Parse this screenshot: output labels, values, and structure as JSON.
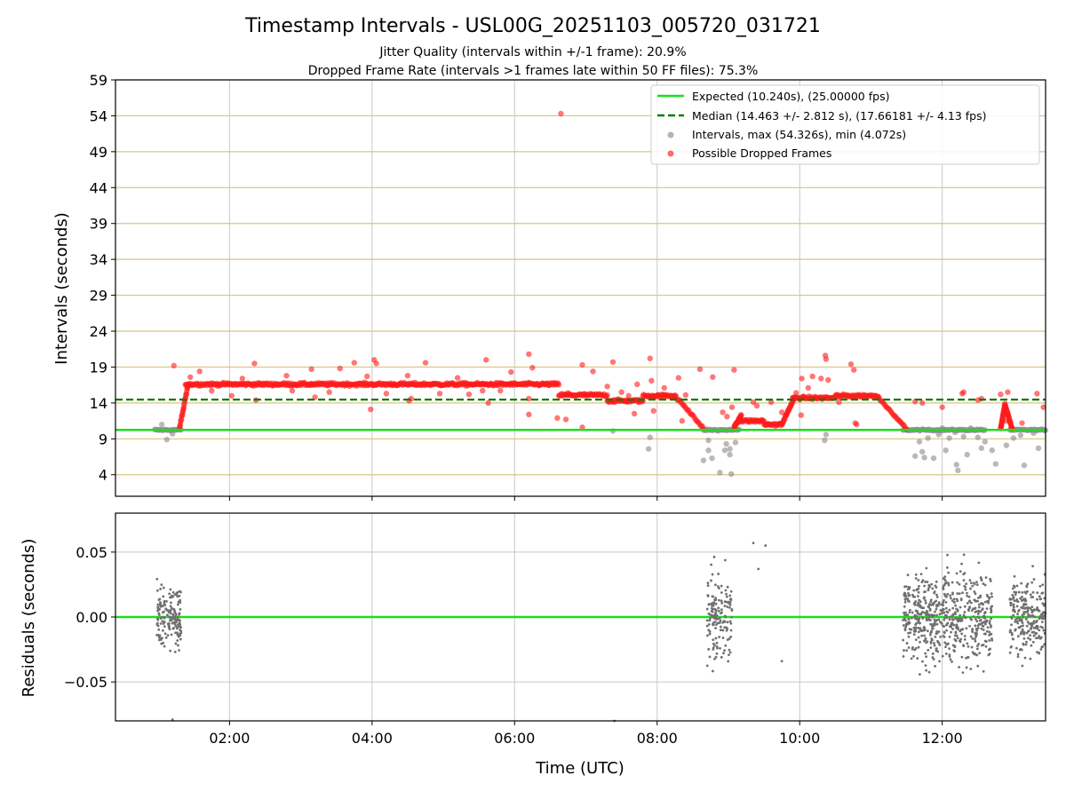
{
  "figure": {
    "title": "Timestamp Intervals - USL00G_20251103_005720_031721",
    "subtitle_1": "Jitter Quality (intervals within +/-1 frame): 20.9%",
    "subtitle_2": "Dropped Frame Rate (intervals >1 frames late within 50 FF files): 75.3%"
  },
  "colors": {
    "expected": "#18e018",
    "median": "#0a7a0a",
    "intervals": "#8a8a8a",
    "dropped": "#ff1a1a",
    "residuals": "#707070",
    "hgrid_top": "#d8c480",
    "grid": "#c8c8c8"
  },
  "chart_data": [
    {
      "type": "scatter",
      "ylabel": "Intervals (seconds)",
      "x_unit": "hours UTC",
      "xlim": [
        0.4,
        13.45
      ],
      "ylim": [
        1,
        59
      ],
      "ytick_values": [
        4,
        9,
        14,
        19,
        24,
        29,
        34,
        39,
        44,
        49,
        54,
        59
      ],
      "ytick_labels": [
        "4",
        "9",
        "14",
        "19",
        "24",
        "29",
        "34",
        "39",
        "44",
        "49",
        "54",
        "59"
      ],
      "xtick_values": [
        2,
        4,
        6,
        8,
        10,
        12
      ],
      "legend_position": "top-right",
      "lines": [
        {
          "name": "expected",
          "label": "Expected (10.240s), (25.00000 fps)",
          "y": 10.24,
          "style": "solid"
        },
        {
          "name": "median",
          "label": "Median (14.463 +/- 2.812 s), (17.66181 +/- 4.13 fps)",
          "y": 14.463,
          "style": "dashed"
        }
      ],
      "series": [
        {
          "name": "Intervals",
          "label": "Intervals, max (54.326s), min (4.072s)",
          "bands": [
            {
              "x0": 0.95,
              "x1": 1.32,
              "y": 10.24
            },
            {
              "x0": 8.65,
              "x1": 9.15,
              "y": 10.24
            },
            {
              "x0": 11.45,
              "x1": 12.6,
              "y": 10.24
            },
            {
              "x0": 12.95,
              "x1": 13.45,
              "y": 10.24
            }
          ],
          "points": [
            [
              1.12,
              8.9
            ],
            [
              1.2,
              9.7
            ],
            [
              1.05,
              11.0
            ],
            [
              7.38,
              10.1
            ],
            [
              7.9,
              9.2
            ],
            [
              7.88,
              7.6
            ],
            [
              8.65,
              6.0
            ],
            [
              8.72,
              8.8
            ],
            [
              8.72,
              7.4
            ],
            [
              8.77,
              6.3
            ],
            [
              8.88,
              4.3
            ],
            [
              8.95,
              7.4
            ],
            [
              8.97,
              8.3
            ],
            [
              9.02,
              6.8
            ],
            [
              9.04,
              4.1
            ],
            [
              9.02,
              7.6
            ],
            [
              9.1,
              8.5
            ],
            [
              10.35,
              8.8
            ],
            [
              10.37,
              9.6
            ],
            [
              11.62,
              6.6
            ],
            [
              11.68,
              8.6
            ],
            [
              11.72,
              7.2
            ],
            [
              11.75,
              6.4
            ],
            [
              11.8,
              9.1
            ],
            [
              11.88,
              6.3
            ],
            [
              11.95,
              9.6
            ],
            [
              12.0,
              10.5
            ],
            [
              12.05,
              7.4
            ],
            [
              12.1,
              9.1
            ],
            [
              12.18,
              9.9
            ],
            [
              12.2,
              5.4
            ],
            [
              12.22,
              4.6
            ],
            [
              12.3,
              9.3
            ],
            [
              12.4,
              10.5
            ],
            [
              12.55,
              7.7
            ],
            [
              12.6,
              8.6
            ],
            [
              12.7,
              7.4
            ],
            [
              12.75,
              5.5
            ],
            [
              12.9,
              8.1
            ],
            [
              13.0,
              9.1
            ],
            [
              13.1,
              9.5
            ],
            [
              13.15,
              5.3
            ],
            [
              13.28,
              9.8
            ],
            [
              13.35,
              7.7
            ],
            [
              12.5,
              9.2
            ],
            [
              12.35,
              6.8
            ]
          ]
        },
        {
          "name": "Possible Dropped Frames",
          "label": "Possible Dropped Frames",
          "bands": [
            {
              "x0": 1.38,
              "x1": 6.62,
              "y": 16.6
            },
            {
              "x0": 6.62,
              "x1": 7.3,
              "y": 15.1
            },
            {
              "x0": 7.3,
              "x1": 7.8,
              "y": 14.3
            },
            {
              "x0": 7.8,
              "x1": 8.25,
              "y": 15.0
            },
            {
              "x0": 9.15,
              "x1": 9.5,
              "y": 11.5
            },
            {
              "x0": 9.5,
              "x1": 9.75,
              "y": 11.0
            },
            {
              "x0": 9.9,
              "x1": 10.5,
              "y": 14.7
            },
            {
              "x0": 10.5,
              "x1": 11.1,
              "y": 15.0
            }
          ],
          "ramps": [
            {
              "x0": 1.3,
              "y0": 10.6,
              "x1": 1.42,
              "y1": 16.6
            },
            {
              "x0": 8.25,
              "y0": 15.0,
              "x1": 8.65,
              "y1": 10.5
            },
            {
              "x0": 9.08,
              "y0": 10.6,
              "x1": 9.18,
              "y1": 12.3
            },
            {
              "x0": 9.75,
              "y0": 11.0,
              "x1": 9.92,
              "y1": 14.6
            },
            {
              "x0": 11.1,
              "y0": 14.8,
              "x1": 11.5,
              "y1": 10.4
            },
            {
              "x0": 12.82,
              "y0": 10.4,
              "x1": 12.88,
              "y1": 13.8
            },
            {
              "x0": 12.88,
              "y0": 13.8,
              "x1": 12.98,
              "y1": 10.4
            }
          ],
          "points": [
            [
              6.65,
              54.3
            ],
            [
              1.22,
              19.2
            ],
            [
              1.45,
              17.6
            ],
            [
              1.58,
              18.4
            ],
            [
              1.75,
              15.7
            ],
            [
              2.03,
              15.0
            ],
            [
              2.18,
              17.4
            ],
            [
              2.35,
              19.5
            ],
            [
              2.37,
              14.4
            ],
            [
              2.8,
              17.8
            ],
            [
              2.88,
              15.7
            ],
            [
              3.15,
              18.7
            ],
            [
              3.2,
              14.8
            ],
            [
              3.4,
              15.5
            ],
            [
              3.55,
              18.8
            ],
            [
              3.75,
              19.6
            ],
            [
              3.93,
              17.7
            ],
            [
              4.03,
              20.0
            ],
            [
              4.06,
              19.5
            ],
            [
              3.98,
              13.1
            ],
            [
              4.2,
              15.3
            ],
            [
              4.5,
              17.8
            ],
            [
              4.55,
              14.6
            ],
            [
              4.52,
              14.3
            ],
            [
              4.75,
              19.6
            ],
            [
              4.95,
              15.3
            ],
            [
              5.2,
              17.5
            ],
            [
              5.36,
              15.2
            ],
            [
              5.55,
              15.7
            ],
            [
              5.6,
              20.0
            ],
            [
              5.63,
              14.0
            ],
            [
              5.8,
              15.7
            ],
            [
              5.95,
              18.3
            ],
            [
              6.2,
              20.8
            ],
            [
              6.25,
              18.9
            ],
            [
              6.2,
              12.4
            ],
            [
              6.2,
              14.6
            ],
            [
              6.6,
              11.9
            ],
            [
              6.72,
              11.7
            ],
            [
              6.75,
              15.4
            ],
            [
              6.95,
              19.3
            ],
            [
              6.95,
              10.6
            ],
            [
              7.1,
              18.4
            ],
            [
              7.3,
              16.3
            ],
            [
              7.38,
              19.7
            ],
            [
              7.5,
              15.5
            ],
            [
              7.6,
              15.0
            ],
            [
              7.68,
              12.5
            ],
            [
              7.72,
              16.6
            ],
            [
              7.9,
              20.2
            ],
            [
              7.92,
              17.1
            ],
            [
              7.95,
              12.9
            ],
            [
              8.1,
              16.1
            ],
            [
              8.3,
              17.5
            ],
            [
              8.35,
              11.5
            ],
            [
              8.4,
              15.1
            ],
            [
              8.6,
              18.7
            ],
            [
              8.78,
              17.6
            ],
            [
              8.92,
              12.7
            ],
            [
              8.98,
              12.1
            ],
            [
              9.05,
              13.4
            ],
            [
              9.08,
              18.6
            ],
            [
              9.35,
              14.1
            ],
            [
              9.4,
              13.6
            ],
            [
              9.6,
              14.1
            ],
            [
              9.75,
              12.7
            ],
            [
              9.95,
              15.4
            ],
            [
              10.02,
              12.3
            ],
            [
              10.03,
              17.4
            ],
            [
              10.12,
              16.1
            ],
            [
              10.18,
              17.7
            ],
            [
              10.3,
              17.4
            ],
            [
              10.36,
              20.6
            ],
            [
              10.37,
              20.1
            ],
            [
              10.4,
              17.2
            ],
            [
              10.55,
              14.1
            ],
            [
              10.72,
              19.4
            ],
            [
              10.76,
              18.6
            ],
            [
              10.78,
              11.2
            ],
            [
              10.8,
              11.0
            ],
            [
              11.62,
              14.2
            ],
            [
              11.72,
              14.0
            ],
            [
              12.0,
              13.4
            ],
            [
              12.28,
              15.3
            ],
            [
              12.3,
              15.5
            ],
            [
              12.5,
              14.4
            ],
            [
              12.55,
              14.6
            ],
            [
              12.82,
              15.2
            ],
            [
              12.92,
              15.5
            ],
            [
              12.9,
              11.5
            ],
            [
              13.12,
              11.2
            ],
            [
              13.33,
              15.3
            ],
            [
              13.42,
              13.4
            ]
          ]
        }
      ]
    },
    {
      "type": "scatter",
      "ylabel": "Residuals (seconds)",
      "xlabel": "Time (UTC)",
      "xlim": [
        0.4,
        13.45
      ],
      "ylim": [
        -0.08,
        0.08
      ],
      "xtick_values": [
        2,
        4,
        6,
        8,
        10,
        12
      ],
      "xtick_labels": [
        "02:00",
        "04:00",
        "06:00",
        "08:00",
        "10:00",
        "12:00"
      ],
      "ytick_values": [
        0.05,
        0.0,
        -0.05
      ],
      "ytick_labels": [
        "0.05",
        "0.00",
        "−0.05"
      ],
      "zero_line": 0.0,
      "clusters": [
        {
          "x0": 0.98,
          "x1": 1.32,
          "count": 170,
          "yspread": 0.034
        },
        {
          "x0": 8.7,
          "x1": 9.05,
          "count": 150,
          "yspread": 0.042
        },
        {
          "x0": 11.45,
          "x1": 12.7,
          "count": 620,
          "yspread": 0.045
        },
        {
          "x0": 12.95,
          "x1": 13.45,
          "count": 240,
          "yspread": 0.038
        }
      ],
      "points": [
        [
          9.35,
          0.057
        ],
        [
          9.42,
          0.037
        ],
        [
          9.52,
          0.055
        ],
        [
          9.75,
          -0.034
        ],
        [
          1.2,
          -0.079
        ],
        [
          7.4,
          -0.08
        ]
      ]
    }
  ]
}
